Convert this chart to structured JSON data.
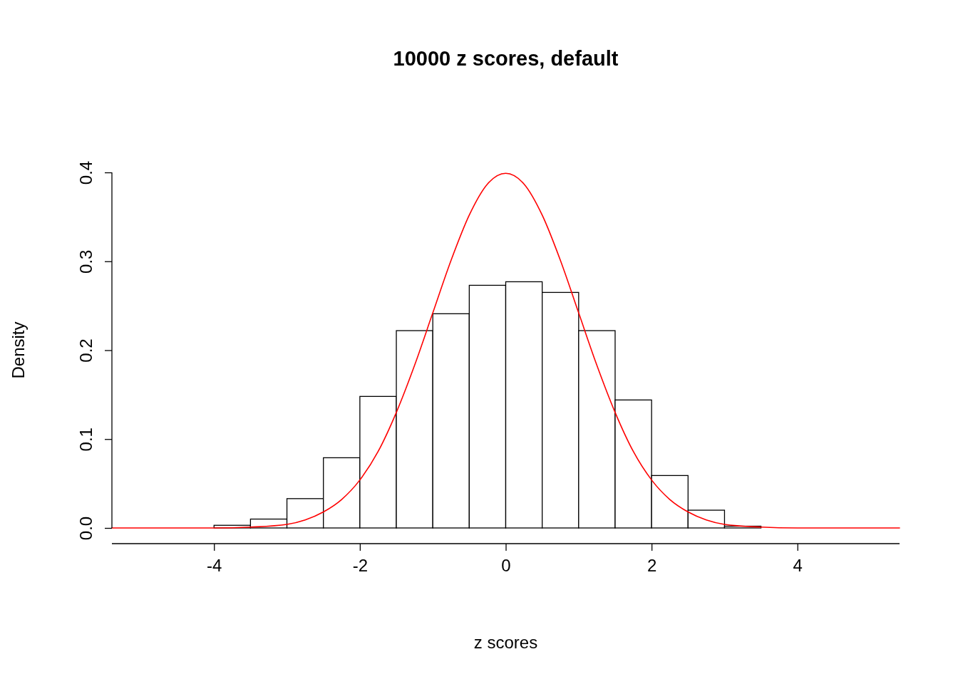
{
  "chart_data": {
    "type": "histogram",
    "title": "10000 z scores, default",
    "xlabel": "z scores",
    "ylabel": "Density",
    "bins": [
      -5,
      -4.5,
      -4,
      -3.5,
      -3,
      -2.5,
      -2,
      -1.5,
      -1,
      -0.5,
      0,
      0.5,
      1,
      1.5,
      2,
      2.5,
      3,
      3.5,
      4,
      4.5,
      5
    ],
    "values": [
      0,
      0,
      0.003,
      0.01,
      0.033,
      0.079,
      0.148,
      0.222,
      0.241,
      0.273,
      0.277,
      0.265,
      0.222,
      0.144,
      0.059,
      0.02,
      0.002,
      0,
      0,
      0
    ],
    "color": "#ffffff",
    "series": [
      {
        "type": "line",
        "color": "#ff0000",
        "x": [
          -5.4,
          -4,
          -3.5,
          -3,
          -2.75,
          -2.5,
          -2.25,
          -2,
          -1.75,
          -1.5,
          -1.25,
          -1,
          -0.75,
          -0.5,
          -0.25,
          0,
          0.25,
          0.5,
          0.75,
          1,
          1.25,
          1.5,
          1.75,
          2,
          2.25,
          2.5,
          2.75,
          3,
          3.5,
          4,
          5.4
        ],
        "values": [
          0,
          0,
          0.001,
          0.004,
          0.009,
          0.018,
          0.032,
          0.054,
          0.086,
          0.13,
          0.183,
          0.242,
          0.301,
          0.352,
          0.387,
          0.399,
          0.387,
          0.352,
          0.301,
          0.242,
          0.183,
          0.13,
          0.086,
          0.054,
          0.032,
          0.018,
          0.009,
          0.004,
          0.001,
          0,
          0
        ]
      }
    ],
    "xlim": [
      -5.4,
      5.4
    ],
    "ylim": [
      0,
      0.4
    ],
    "xticks": [
      -4,
      -2,
      0,
      2,
      4
    ],
    "yticks": [
      {
        "value": 0,
        "label": "0.0"
      },
      0.1,
      0.2,
      0.3,
      0.4
    ],
    "grid": false
  }
}
